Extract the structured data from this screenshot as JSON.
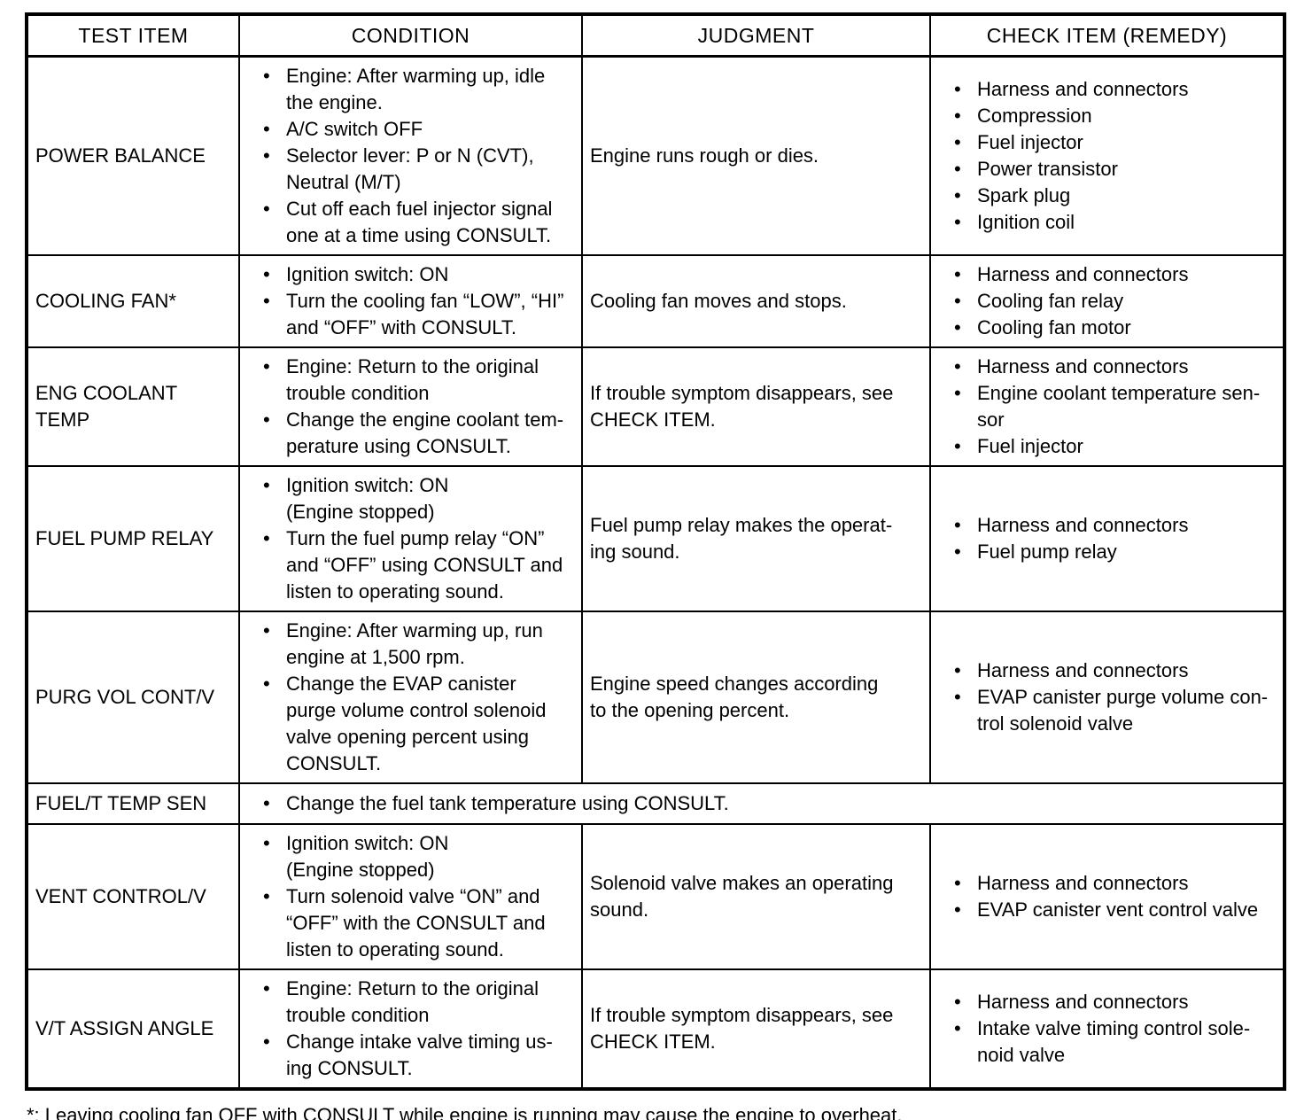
{
  "table": {
    "headers": [
      "TEST ITEM",
      "CONDITION",
      "JUDGMENT",
      "CHECK ITEM (REMEDY)"
    ],
    "rows": [
      {
        "test_item": "POWER BALANCE",
        "condition": [
          "Engine: After warming up, idle\nthe engine.",
          "A/C switch OFF",
          "Selector lever: P or N (CVT),\nNeutral (M/T)",
          "Cut off each fuel injector signal\none at a time using CONSULT."
        ],
        "judgment": "Engine runs rough or dies.",
        "check_item": [
          "Harness and connectors",
          "Compression",
          "Fuel injector",
          "Power transistor",
          "Spark plug",
          "Ignition coil"
        ]
      },
      {
        "test_item": "COOLING FAN*",
        "condition": [
          "Ignition switch: ON",
          "Turn the cooling fan “LOW”, “HI”\nand “OFF” with CONSULT."
        ],
        "judgment": "Cooling fan moves and stops.",
        "check_item": [
          "Harness and connectors",
          "Cooling fan relay",
          "Cooling fan motor"
        ]
      },
      {
        "test_item": "ENG COOLANT\nTEMP",
        "condition": [
          "Engine: Return to the original\ntrouble condition",
          "Change the engine coolant tem-\nperature using CONSULT."
        ],
        "judgment": "If trouble symptom disappears, see\nCHECK ITEM.",
        "check_item": [
          "Harness and connectors",
          "Engine coolant temperature sen-\nsor",
          "Fuel injector"
        ]
      },
      {
        "test_item": "FUEL PUMP RELAY",
        "condition": [
          "Ignition switch: ON\n(Engine stopped)",
          "Turn the fuel pump relay “ON”\nand “OFF” using CONSULT and\nlisten to operating sound."
        ],
        "judgment": "Fuel pump relay makes the operat-\ning sound.",
        "check_item": [
          "Harness and connectors",
          "Fuel pump relay"
        ]
      },
      {
        "test_item": "PURG VOL CONT/V",
        "condition": [
          "Engine: After warming up, run\nengine at 1,500 rpm.",
          "Change the EVAP canister\npurge volume control solenoid\nvalve opening percent using\nCONSULT."
        ],
        "judgment": "Engine speed changes according\nto the opening percent.",
        "check_item": [
          "Harness and connectors",
          "EVAP canister purge volume con-\ntrol solenoid valve"
        ]
      },
      {
        "test_item": "FUEL/T TEMP SEN",
        "condition_spans_all": true,
        "condition": [
          "Change the fuel tank temperature using CONSULT."
        ]
      },
      {
        "test_item": "VENT CONTROL/V",
        "condition": [
          "Ignition switch: ON\n(Engine stopped)",
          "Turn solenoid valve “ON” and\n“OFF” with the CONSULT and\nlisten to operating sound."
        ],
        "judgment": "Solenoid valve makes an operating\nsound.",
        "check_item": [
          "Harness and connectors",
          "EVAP canister vent control valve"
        ]
      },
      {
        "test_item": "V/T ASSIGN ANGLE",
        "condition": [
          "Engine: Return to the original\ntrouble condition",
          "Change intake valve timing us-\ning CONSULT."
        ],
        "judgment": "If trouble symptom disappears, see\nCHECK ITEM.",
        "check_item": [
          "Harness and connectors",
          "Intake valve timing control sole-\nnoid valve"
        ]
      }
    ]
  },
  "footnote": "*: Leaving cooling fan OFF with CONSULT while engine is running may cause the engine to overheat."
}
